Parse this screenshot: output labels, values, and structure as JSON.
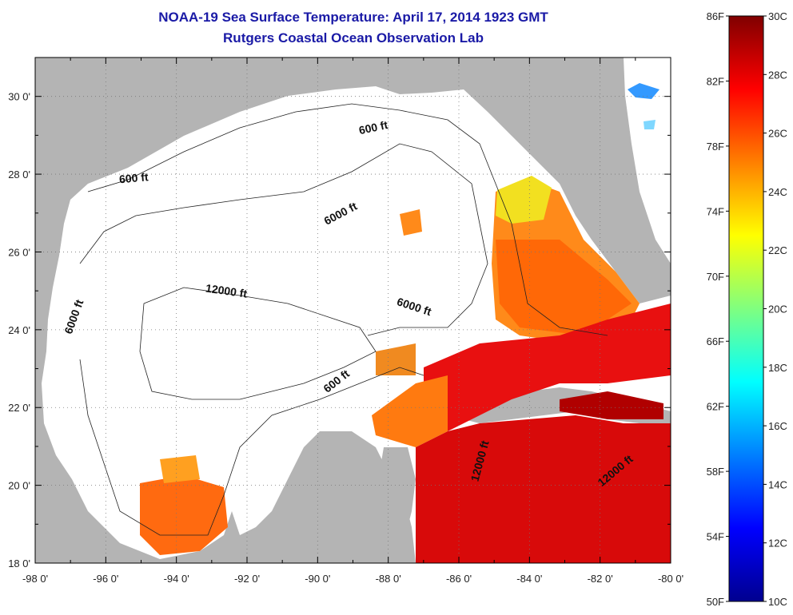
{
  "header": {
    "title": "NOAA-19 Sea Surface Temperature:  April 17, 2014 1923 GMT",
    "subtitle": "Rutgers Coastal Ocean Observation Lab"
  },
  "map": {
    "lon_ticks": [
      "-98 0'",
      "-96 0'",
      "-94 0'",
      "-92 0'",
      "-90 0'",
      "-88 0'",
      "-86 0'",
      "-84 0'",
      "-82 0'",
      "-80 0'"
    ],
    "lat_ticks": [
      "30 0'",
      "28 0'",
      "26 0'",
      "24 0'",
      "22 0'",
      "20 0'",
      "18 0'"
    ],
    "lon_range": [
      -98,
      -80
    ],
    "lat_range": [
      18,
      31
    ],
    "grid": "dotted",
    "contours": [
      {
        "label": "600 ft",
        "lon": -88.4,
        "lat": 29.1,
        "angle": -12
      },
      {
        "label": "600 ft",
        "lon": -95.2,
        "lat": 27.8,
        "angle": -5
      },
      {
        "label": "6000 ft",
        "lon": -89.3,
        "lat": 26.9,
        "angle": -28
      },
      {
        "label": "6000 ft",
        "lon": -96.8,
        "lat": 24.3,
        "angle": -70
      },
      {
        "label": "12000 ft",
        "lon": -92.6,
        "lat": 24.9,
        "angle": 8
      },
      {
        "label": "6000 ft",
        "lon": -87.3,
        "lat": 24.5,
        "angle": 18
      },
      {
        "label": "600 ft",
        "lon": -89.4,
        "lat": 22.6,
        "angle": -38
      },
      {
        "label": "12000 ft",
        "lon": -85.3,
        "lat": 20.6,
        "angle": -75
      },
      {
        "label": "12000 ft",
        "lon": -81.5,
        "lat": 20.3,
        "angle": -40
      }
    ],
    "colors": {
      "land": "#b4b4b4",
      "ocean_nodata": "#ffffff"
    }
  },
  "colorbar": {
    "fahrenheit_labels": [
      "86F",
      "82F",
      "78F",
      "74F",
      "70F",
      "66F",
      "62F",
      "58F",
      "54F",
      "50F"
    ],
    "celsius_labels": [
      "30C",
      "28C",
      "26C",
      "24C",
      "22C",
      "20C",
      "18C",
      "16C",
      "14C",
      "12C",
      "10C"
    ],
    "range_c": [
      10,
      30
    ],
    "colormap": "jet"
  }
}
